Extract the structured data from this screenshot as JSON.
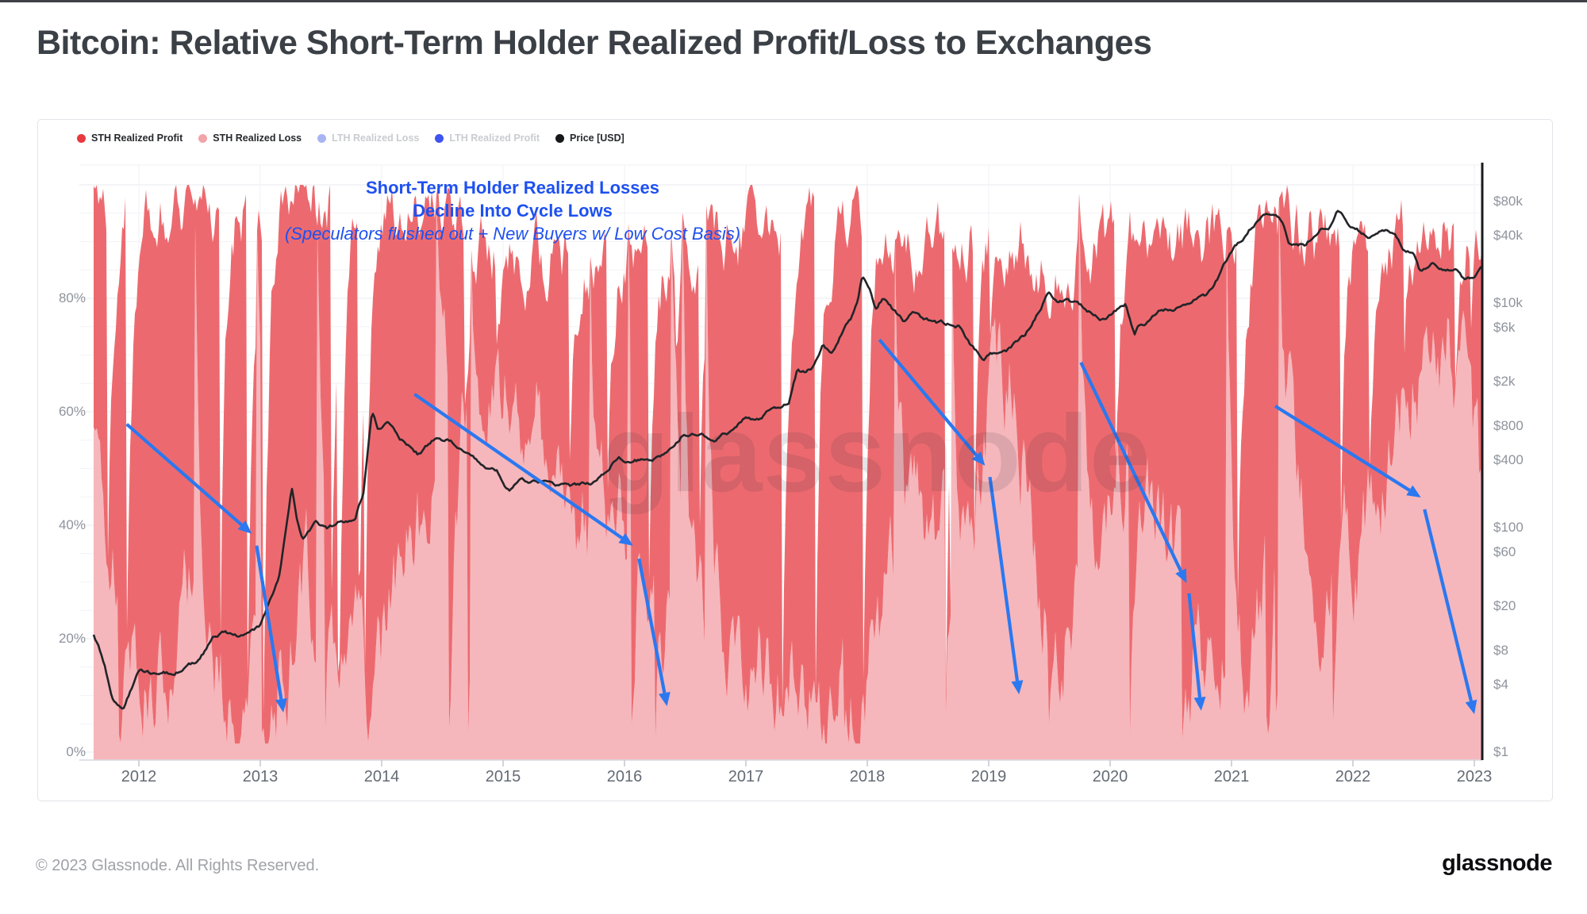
{
  "page": {
    "title": "Bitcoin: Relative Short-Term Holder Realized Profit/Loss to Exchanges",
    "footer_copyright": "© 2023 Glassnode. All Rights Reserved.",
    "brand_logo": "glassnode",
    "watermark": "glassnode"
  },
  "legend": {
    "items": [
      {
        "label": "STH Realized Profit",
        "color": "#e8393f",
        "muted": false
      },
      {
        "label": "STH Realized Loss",
        "color": "#f2a4a9",
        "muted": false
      },
      {
        "label": "LTH Realized Loss",
        "color": "#a9b5f2",
        "muted": true
      },
      {
        "label": "LTH Realized Profit",
        "color": "#3e53f0",
        "muted": true
      },
      {
        "label": "Price [USD]",
        "color": "#17181b",
        "muted": false
      }
    ]
  },
  "annotation": {
    "line1": "Short-Term Holder Realized Losses",
    "line2": "Decline Into Cycle Lows",
    "line3": "(Speculators flushed out + New Buyers w/ Low Cost Basis)"
  },
  "chart_data": {
    "type": "area",
    "title": "Bitcoin: Relative Short-Term Holder Realized Profit/Loss to Exchanges",
    "legend_position": "top",
    "grid": true,
    "x_axis": {
      "years": [
        2012,
        2013,
        2014,
        2015,
        2016,
        2017,
        2018,
        2019,
        2020,
        2021,
        2022,
        2023
      ]
    },
    "left_axis": {
      "unit": "%",
      "range": [
        0,
        100
      ],
      "minor_step": 5,
      "ticks": [
        {
          "v": 0,
          "label": "0%"
        },
        {
          "v": 20,
          "label": "20%"
        },
        {
          "v": 40,
          "label": "40%"
        },
        {
          "v": 60,
          "label": "60%"
        },
        {
          "v": 80,
          "label": "80%"
        }
      ]
    },
    "right_axis": {
      "scale": "log",
      "unit": "USD",
      "ticks": [
        {
          "p": 80000,
          "label": "$80k"
        },
        {
          "p": 40000,
          "label": "$40k"
        },
        {
          "p": 10000,
          "label": "$10k"
        },
        {
          "p": 6000,
          "label": "$6k"
        },
        {
          "p": 2000,
          "label": "$2k"
        },
        {
          "p": 800,
          "label": "$800"
        },
        {
          "p": 400,
          "label": "$400"
        },
        {
          "p": 100,
          "label": "$100"
        },
        {
          "p": 60,
          "label": "$60"
        },
        {
          "p": 20,
          "label": "$20"
        },
        {
          "p": 8,
          "label": "$8"
        },
        {
          "p": 4,
          "label": "$4"
        },
        {
          "p": 1,
          "label": "$1"
        }
      ]
    },
    "colors": {
      "sth_profit": "#ec6a6f",
      "sth_loss": "#f5b7bc",
      "price": "#222428",
      "arrow": "#2b78f0",
      "gridline": "#f2f2f5",
      "axis_line": "#d6d8dd",
      "price_axis_line": "#1a1b1f"
    },
    "series": [
      {
        "name": "STH Realized Loss (% envelope, stacked bottom)",
        "points": [
          [
            2011.63,
            62
          ],
          [
            2011.72,
            38
          ],
          [
            2011.85,
            15
          ],
          [
            2012.0,
            14
          ],
          [
            2012.2,
            20
          ],
          [
            2012.4,
            28
          ],
          [
            2012.55,
            22
          ],
          [
            2012.7,
            14
          ],
          [
            2012.9,
            12
          ],
          [
            2013.1,
            16
          ],
          [
            2013.3,
            26
          ],
          [
            2013.5,
            30
          ],
          [
            2013.7,
            15
          ],
          [
            2013.9,
            11
          ],
          [
            2014.05,
            20
          ],
          [
            2014.25,
            38
          ],
          [
            2014.5,
            58
          ],
          [
            2014.75,
            62
          ],
          [
            2014.95,
            60
          ],
          [
            2015.1,
            62
          ],
          [
            2015.3,
            52
          ],
          [
            2015.5,
            46
          ],
          [
            2015.7,
            40
          ],
          [
            2015.9,
            38
          ],
          [
            2016.1,
            42
          ],
          [
            2016.3,
            28
          ],
          [
            2016.55,
            22
          ],
          [
            2016.8,
            20
          ],
          [
            2017.05,
            16
          ],
          [
            2017.3,
            14
          ],
          [
            2017.55,
            13
          ],
          [
            2017.8,
            11
          ],
          [
            2018.0,
            16
          ],
          [
            2018.15,
            32
          ],
          [
            2018.35,
            38
          ],
          [
            2018.55,
            36
          ],
          [
            2018.75,
            34
          ],
          [
            2018.9,
            55
          ],
          [
            2019.05,
            72
          ],
          [
            2019.2,
            60
          ],
          [
            2019.4,
            32
          ],
          [
            2019.6,
            24
          ],
          [
            2019.8,
            34
          ],
          [
            2020.0,
            48
          ],
          [
            2020.18,
            68
          ],
          [
            2020.28,
            55
          ],
          [
            2020.45,
            30
          ],
          [
            2020.65,
            22
          ],
          [
            2020.9,
            16
          ],
          [
            2021.1,
            18
          ],
          [
            2021.3,
            38
          ],
          [
            2021.45,
            58
          ],
          [
            2021.6,
            40
          ],
          [
            2021.8,
            30
          ],
          [
            2021.95,
            34
          ],
          [
            2022.1,
            48
          ],
          [
            2022.3,
            58
          ],
          [
            2022.5,
            68
          ],
          [
            2022.7,
            74
          ],
          [
            2022.85,
            68
          ],
          [
            2023.0,
            48
          ],
          [
            2023.06,
            22
          ]
        ]
      },
      {
        "name": "STH total (profit+loss % envelope, stack top)",
        "points": [
          [
            2011.63,
            97
          ],
          [
            2012.0,
            98
          ],
          [
            2012.5,
            97
          ],
          [
            2013.0,
            98
          ],
          [
            2013.5,
            97
          ],
          [
            2013.95,
            98
          ],
          [
            2014.3,
            94
          ],
          [
            2014.7,
            91
          ],
          [
            2015.1,
            88
          ],
          [
            2015.5,
            87
          ],
          [
            2015.9,
            89
          ],
          [
            2016.3,
            88
          ],
          [
            2016.7,
            90
          ],
          [
            2017.1,
            93
          ],
          [
            2017.5,
            95
          ],
          [
            2017.95,
            97
          ],
          [
            2018.2,
            92
          ],
          [
            2018.5,
            88
          ],
          [
            2018.8,
            90
          ],
          [
            2019.05,
            93
          ],
          [
            2019.3,
            89
          ],
          [
            2019.6,
            87
          ],
          [
            2019.9,
            89
          ],
          [
            2020.18,
            92
          ],
          [
            2020.5,
            89
          ],
          [
            2020.8,
            90
          ],
          [
            2021.05,
            92
          ],
          [
            2021.3,
            93
          ],
          [
            2021.5,
            92
          ],
          [
            2021.7,
            90
          ],
          [
            2021.95,
            91
          ],
          [
            2022.2,
            90
          ],
          [
            2022.5,
            92
          ],
          [
            2022.75,
            93
          ],
          [
            2023.0,
            92
          ],
          [
            2023.06,
            93
          ]
        ]
      },
      {
        "name": "Price [USD]",
        "points": [
          [
            2011.63,
            11
          ],
          [
            2011.72,
            6
          ],
          [
            2011.78,
            3.2
          ],
          [
            2011.87,
            2.4
          ],
          [
            2012.0,
            5.2
          ],
          [
            2012.15,
            4.8
          ],
          [
            2012.3,
            5.1
          ],
          [
            2012.5,
            6.6
          ],
          [
            2012.62,
            10.5
          ],
          [
            2012.7,
            12
          ],
          [
            2012.8,
            10.8
          ],
          [
            2013.0,
            13.5
          ],
          [
            2013.15,
            33
          ],
          [
            2013.26,
            230
          ],
          [
            2013.3,
            120
          ],
          [
            2013.35,
            78
          ],
          [
            2013.45,
            110
          ],
          [
            2013.55,
            97
          ],
          [
            2013.65,
            108
          ],
          [
            2013.78,
            125
          ],
          [
            2013.85,
            210
          ],
          [
            2013.92,
            1100
          ],
          [
            2013.97,
            750
          ],
          [
            2014.05,
            850
          ],
          [
            2014.15,
            620
          ],
          [
            2014.3,
            450
          ],
          [
            2014.42,
            590
          ],
          [
            2014.55,
            600
          ],
          [
            2014.7,
            480
          ],
          [
            2014.85,
            370
          ],
          [
            2014.95,
            320
          ],
          [
            2015.05,
            220
          ],
          [
            2015.15,
            290
          ],
          [
            2015.3,
            250
          ],
          [
            2015.45,
            235
          ],
          [
            2015.6,
            230
          ],
          [
            2015.75,
            260
          ],
          [
            2015.85,
            310
          ],
          [
            2015.95,
            430
          ],
          [
            2016.05,
            380
          ],
          [
            2016.2,
            415
          ],
          [
            2016.35,
            450
          ],
          [
            2016.47,
            670
          ],
          [
            2016.6,
            660
          ],
          [
            2016.75,
            610
          ],
          [
            2016.9,
            730
          ],
          [
            2017.0,
            960
          ],
          [
            2017.1,
            890
          ],
          [
            2017.2,
            1180
          ],
          [
            2017.35,
            1300
          ],
          [
            2017.42,
            2500
          ],
          [
            2017.5,
            2400
          ],
          [
            2017.55,
            2700
          ],
          [
            2017.63,
            4200
          ],
          [
            2017.7,
            3600
          ],
          [
            2017.8,
            5800
          ],
          [
            2017.87,
            7500
          ],
          [
            2017.92,
            11000
          ],
          [
            2017.96,
            19000
          ],
          [
            2018.02,
            13500
          ],
          [
            2018.07,
            9000
          ],
          [
            2018.13,
            11200
          ],
          [
            2018.22,
            8300
          ],
          [
            2018.3,
            7000
          ],
          [
            2018.38,
            9200
          ],
          [
            2018.45,
            7500
          ],
          [
            2018.55,
            6400
          ],
          [
            2018.65,
            6500
          ],
          [
            2018.75,
            6300
          ],
          [
            2018.85,
            4100
          ],
          [
            2018.95,
            3300
          ],
          [
            2019.05,
            3600
          ],
          [
            2019.15,
            3900
          ],
          [
            2019.3,
            5200
          ],
          [
            2019.4,
            8000
          ],
          [
            2019.5,
            12600
          ],
          [
            2019.57,
            10500
          ],
          [
            2019.65,
            10800
          ],
          [
            2019.75,
            9500
          ],
          [
            2019.85,
            8200
          ],
          [
            2019.95,
            7300
          ],
          [
            2020.05,
            8800
          ],
          [
            2020.13,
            9800
          ],
          [
            2020.2,
            5200
          ],
          [
            2020.23,
            6500
          ],
          [
            2020.3,
            6800
          ],
          [
            2020.4,
            8800
          ],
          [
            2020.5,
            9200
          ],
          [
            2020.6,
            9100
          ],
          [
            2020.7,
            11000
          ],
          [
            2020.8,
            11500
          ],
          [
            2020.87,
            15500
          ],
          [
            2020.95,
            23000
          ],
          [
            2021.03,
            33000
          ],
          [
            2021.1,
            38000
          ],
          [
            2021.17,
            48000
          ],
          [
            2021.25,
            57000
          ],
          [
            2021.32,
            61000
          ],
          [
            2021.37,
            59000
          ],
          [
            2021.42,
            54000
          ],
          [
            2021.47,
            36000
          ],
          [
            2021.53,
            34000
          ],
          [
            2021.6,
            33000
          ],
          [
            2021.67,
            40000
          ],
          [
            2021.75,
            47000
          ],
          [
            2021.82,
            50000
          ],
          [
            2021.87,
            66000
          ],
          [
            2021.92,
            57000
          ],
          [
            2022.0,
            47000
          ],
          [
            2022.07,
            42000
          ],
          [
            2022.13,
            38500
          ],
          [
            2022.2,
            42000
          ],
          [
            2022.28,
            45500
          ],
          [
            2022.35,
            40000
          ],
          [
            2022.42,
            30000
          ],
          [
            2022.5,
            29500
          ],
          [
            2022.55,
            20000
          ],
          [
            2022.65,
            22500
          ],
          [
            2022.75,
            19800
          ],
          [
            2022.85,
            20500
          ],
          [
            2022.92,
            16200
          ],
          [
            2023.0,
            16800
          ],
          [
            2023.04,
            21000
          ],
          [
            2023.06,
            22800
          ]
        ]
      }
    ],
    "arrows": [
      [
        2011.9,
        57.8,
        2012.93,
        38.5
      ],
      [
        2012.97,
        36.4,
        2013.19,
        7.0
      ],
      [
        2014.27,
        63.1,
        2016.07,
        36.4
      ],
      [
        2016.12,
        34.1,
        2016.35,
        8.1
      ],
      [
        2018.1,
        72.7,
        2018.97,
        50.5
      ],
      [
        2019.01,
        48.5,
        2019.25,
        10.2
      ],
      [
        2019.76,
        68.7,
        2020.63,
        29.8
      ],
      [
        2020.65,
        28.0,
        2020.75,
        7.3
      ],
      [
        2021.36,
        61.0,
        2022.56,
        44.9
      ],
      [
        2022.59,
        42.8,
        2023.0,
        6.7
      ]
    ]
  }
}
